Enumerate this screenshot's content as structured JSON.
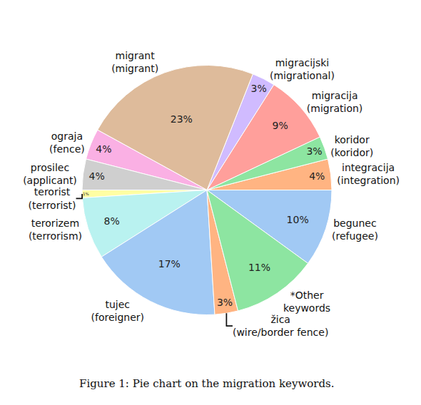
{
  "chart_data": {
    "type": "pie",
    "title": "Figure 1: Pie chart on the migration keywords.",
    "categories": [
      "begunec\n(refugee)",
      "integracija\n(integration)",
      "koridor\n(koridor)",
      "migracija\n(migration)",
      "migracijski\n(migrational)",
      "migrant\n(migrant)",
      "ograja\n(fence)",
      "prosilec\n(applicant)",
      "terorist\n(terrorist)",
      "terorizem\n(terrorism)",
      "tujec\n(foreigner)",
      "žica\n(wire/border fence)",
      "*Other\nkeywords"
    ],
    "values": [
      10,
      4,
      3,
      9,
      3,
      23,
      4,
      4,
      1,
      8,
      17,
      3,
      11
    ],
    "value_labels": [
      "10%",
      "4%",
      "3%",
      "9%",
      "3%",
      "23%",
      "4%",
      "4%",
      "1%",
      "8%",
      "17%",
      "3%",
      "11%"
    ],
    "colors": [
      "#a1c9f4",
      "#ffb482",
      "#8de5a1",
      "#ff9f9b",
      "#d0bbff",
      "#debb9b",
      "#fab0e4",
      "#cfcfcf",
      "#fffea3",
      "#b9f2f0",
      "#a1c9f4",
      "#ffb482",
      "#8de5a1"
    ],
    "data_labels": true,
    "legend": "none"
  }
}
